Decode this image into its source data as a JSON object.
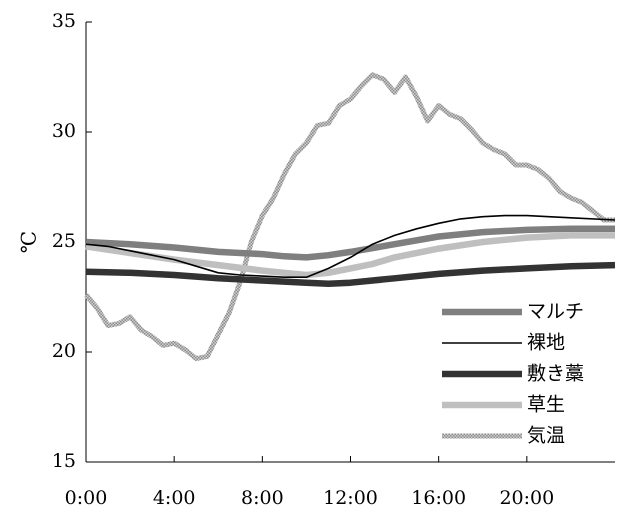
{
  "chart_data": {
    "type": "line",
    "title": "",
    "xlabel": "",
    "ylabel": "℃",
    "xlim": [
      0,
      24
    ],
    "ylim": [
      15,
      35
    ],
    "x_ticks": [
      {
        "value": 0,
        "label": "0:00"
      },
      {
        "value": 4,
        "label": "4:00"
      },
      {
        "value": 8,
        "label": "8:00"
      },
      {
        "value": 12,
        "label": "12:00"
      },
      {
        "value": 16,
        "label": "16:00"
      },
      {
        "value": 20,
        "label": "20:00"
      }
    ],
    "y_ticks": [
      15,
      20,
      25,
      30,
      35
    ],
    "grid": false,
    "legend_position": "bottom-right",
    "series": [
      {
        "name": "マルチ",
        "color": "#7f7f7f",
        "style": "thick",
        "points": [
          [
            0,
            25.0
          ],
          [
            2,
            24.9
          ],
          [
            4,
            24.75
          ],
          [
            6,
            24.55
          ],
          [
            8,
            24.45
          ],
          [
            9,
            24.35
          ],
          [
            10,
            24.3
          ],
          [
            11,
            24.4
          ],
          [
            12,
            24.55
          ],
          [
            14,
            24.9
          ],
          [
            16,
            25.25
          ],
          [
            18,
            25.45
          ],
          [
            20,
            25.55
          ],
          [
            22,
            25.6
          ],
          [
            24,
            25.6
          ]
        ]
      },
      {
        "name": "裸地",
        "color": "#000000",
        "style": "thin",
        "points": [
          [
            0,
            24.9
          ],
          [
            1,
            24.8
          ],
          [
            2,
            24.6
          ],
          [
            3,
            24.4
          ],
          [
            4,
            24.2
          ],
          [
            5,
            23.9
          ],
          [
            6,
            23.6
          ],
          [
            7,
            23.5
          ],
          [
            8,
            23.45
          ],
          [
            9,
            23.4
          ],
          [
            10,
            23.4
          ],
          [
            11,
            23.8
          ],
          [
            12,
            24.3
          ],
          [
            13,
            24.9
          ],
          [
            14,
            25.3
          ],
          [
            15,
            25.6
          ],
          [
            16,
            25.85
          ],
          [
            17,
            26.05
          ],
          [
            18,
            26.15
          ],
          [
            19,
            26.2
          ],
          [
            20,
            26.2
          ],
          [
            22,
            26.1
          ],
          [
            24,
            26.0
          ]
        ]
      },
      {
        "name": "敷き藁",
        "color": "#333333",
        "style": "thick",
        "points": [
          [
            0,
            23.65
          ],
          [
            2,
            23.6
          ],
          [
            4,
            23.5
          ],
          [
            6,
            23.35
          ],
          [
            8,
            23.25
          ],
          [
            10,
            23.15
          ],
          [
            11,
            23.1
          ],
          [
            12,
            23.15
          ],
          [
            14,
            23.35
          ],
          [
            16,
            23.55
          ],
          [
            18,
            23.7
          ],
          [
            20,
            23.8
          ],
          [
            22,
            23.9
          ],
          [
            24,
            23.95
          ]
        ]
      },
      {
        "name": "草生",
        "color": "#bfbfbf",
        "style": "thick",
        "points": [
          [
            0,
            24.8
          ],
          [
            2,
            24.5
          ],
          [
            4,
            24.2
          ],
          [
            6,
            23.95
          ],
          [
            8,
            23.7
          ],
          [
            9,
            23.6
          ],
          [
            10,
            23.5
          ],
          [
            11,
            23.6
          ],
          [
            12,
            23.8
          ],
          [
            13,
            24.0
          ],
          [
            14,
            24.3
          ],
          [
            16,
            24.7
          ],
          [
            18,
            25.0
          ],
          [
            20,
            25.2
          ],
          [
            22,
            25.3
          ],
          [
            24,
            25.3
          ]
        ]
      },
      {
        "name": "気温",
        "color": "#a6a6a6",
        "style": "hatched",
        "points": [
          [
            0,
            22.6
          ],
          [
            0.5,
            22.0
          ],
          [
            1,
            21.2
          ],
          [
            1.5,
            21.3
          ],
          [
            2,
            21.6
          ],
          [
            2.5,
            21.0
          ],
          [
            3,
            20.7
          ],
          [
            3.5,
            20.3
          ],
          [
            4,
            20.4
          ],
          [
            4.5,
            20.1
          ],
          [
            5,
            19.7
          ],
          [
            5.5,
            19.8
          ],
          [
            6,
            20.8
          ],
          [
            6.5,
            21.8
          ],
          [
            7,
            23.2
          ],
          [
            7.5,
            25.0
          ],
          [
            8,
            26.2
          ],
          [
            8.5,
            27.0
          ],
          [
            9,
            28.1
          ],
          [
            9.5,
            29.0
          ],
          [
            10,
            29.5
          ],
          [
            10.5,
            30.3
          ],
          [
            11,
            30.4
          ],
          [
            11.5,
            31.2
          ],
          [
            12,
            31.5
          ],
          [
            12.5,
            32.1
          ],
          [
            13,
            32.6
          ],
          [
            13.5,
            32.4
          ],
          [
            14,
            31.8
          ],
          [
            14.5,
            32.5
          ],
          [
            15,
            31.6
          ],
          [
            15.5,
            30.5
          ],
          [
            16,
            31.2
          ],
          [
            16.5,
            30.8
          ],
          [
            17,
            30.6
          ],
          [
            17.5,
            30.1
          ],
          [
            18,
            29.5
          ],
          [
            18.5,
            29.2
          ],
          [
            19,
            29.0
          ],
          [
            19.5,
            28.5
          ],
          [
            20,
            28.5
          ],
          [
            20.5,
            28.3
          ],
          [
            21,
            27.9
          ],
          [
            21.5,
            27.3
          ],
          [
            22,
            27.0
          ],
          [
            22.5,
            26.8
          ],
          [
            23,
            26.4
          ],
          [
            23.5,
            26.0
          ],
          [
            24,
            26.0
          ]
        ]
      }
    ]
  }
}
